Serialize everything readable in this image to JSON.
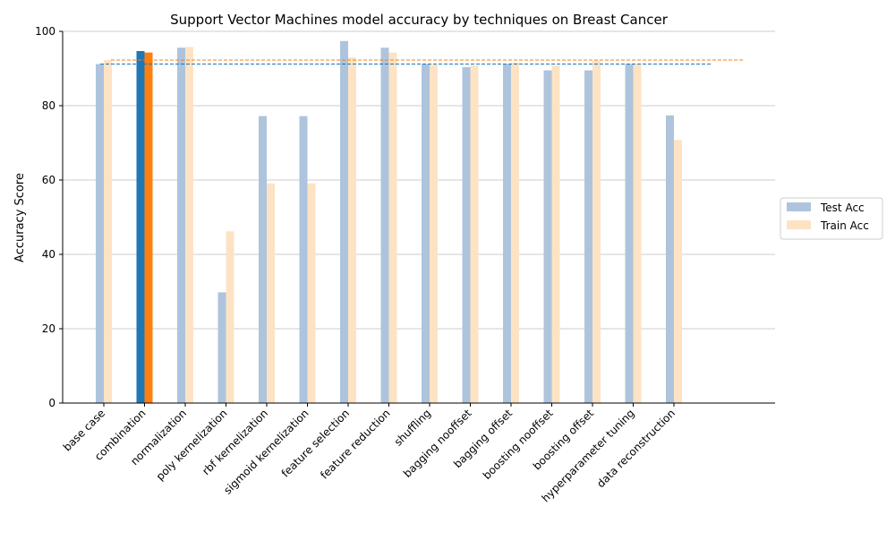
{
  "chart_data": {
    "type": "bar",
    "title": "Support Vector Machines model accuracy by techniques on Breast Cancer",
    "xlabel": "",
    "ylabel": "Accuracy Score",
    "ylim": [
      0,
      100
    ],
    "yticks": [
      "0",
      "20",
      "40",
      "60",
      "80",
      "100"
    ],
    "grid": "horizontal",
    "legend_position": "right",
    "categories": [
      "base case",
      "combination",
      "normalization",
      "poly kernelization",
      "rbf kernelization",
      "sigmoid kernelization",
      "feature selection",
      "feature reduction",
      "shuffling",
      "bagging nooffset",
      "bagging offset",
      "boosting nooffset",
      "boosting offset",
      "hyperparameter tuning",
      "data reconstruction"
    ],
    "series": [
      {
        "name": "Test Acc",
        "color": "#aec4dc",
        "highlight_color": "#1f77b4",
        "values": [
          91.2,
          94.7,
          95.6,
          29.8,
          77.2,
          77.2,
          97.4,
          95.6,
          91.2,
          90.4,
          91.2,
          89.5,
          89.5,
          91.2,
          77.4
        ]
      },
      {
        "name": "Train Acc",
        "color": "#fde3c4",
        "highlight_color": "#ff7f0e",
        "values": [
          92.3,
          94.3,
          95.8,
          46.2,
          59.1,
          59.1,
          93.0,
          94.3,
          91.0,
          90.8,
          91.6,
          90.8,
          92.1,
          91.2,
          70.8
        ]
      }
    ],
    "highlight_category": "combination",
    "reference_lines": [
      {
        "series": "Test Acc",
        "value": 91.2,
        "style": "dashed",
        "color": "#1f77b4"
      },
      {
        "series": "Train Acc",
        "value": 92.3,
        "style": "dashed",
        "color": "#ff7f0e"
      }
    ]
  }
}
